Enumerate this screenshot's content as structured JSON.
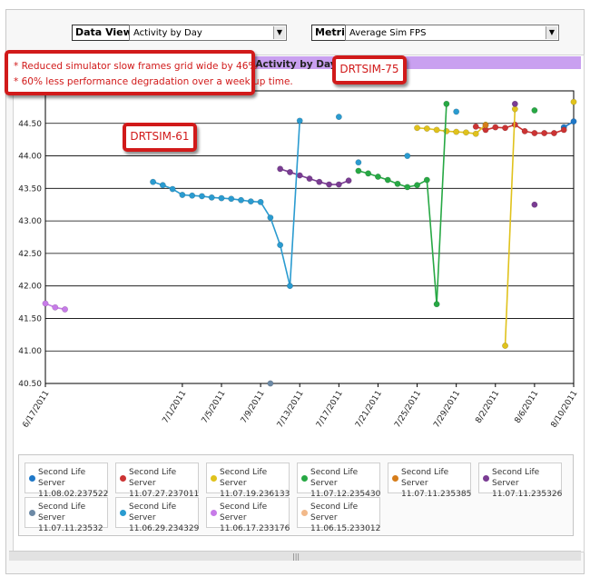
{
  "controls": {
    "data_view_label": "Data View:",
    "data_view_value": "Activity by Day",
    "metric_label": "Metric:",
    "metric_value": "Average Sim FPS"
  },
  "callouts": {
    "note_line1": "* Reduced simulator slow frames grid wide by 46%",
    "note_line2": "* 60% less performance degradation over a week up time.",
    "tag1": "DRTSIM-61",
    "tag2": "DRTSIM-75"
  },
  "chart_data": {
    "type": "line",
    "title": "Activity by Day",
    "xlabel": "",
    "ylabel": "",
    "ylim": [
      40.5,
      45.0
    ],
    "xlim": [
      "2011-06-17",
      "2011-08-10"
    ],
    "yticks": [
      "40.50",
      "41.00",
      "41.50",
      "42.00",
      "42.50",
      "43.00",
      "43.50",
      "44.00",
      "44.50"
    ],
    "xticks": [
      "6/17/2011",
      "7/1/2011",
      "7/5/2011",
      "7/9/2011",
      "7/13/2011",
      "7/17/2011",
      "7/21/2011",
      "7/25/2011",
      "7/29/2011",
      "8/2/2011",
      "8/6/2011",
      "8/10/2011"
    ],
    "legend_position": "bottom",
    "series": [
      {
        "name": "Second Life Server 11.08.02.237522",
        "color": "#1f78c8",
        "points": [
          [
            "2011-08-09",
            44.44
          ],
          [
            "2011-08-10",
            44.53
          ]
        ]
      },
      {
        "name": "Second Life Server 11.07.27.237011",
        "color": "#cc3333",
        "points": [
          [
            "2011-07-31",
            44.45
          ],
          [
            "2011-08-01",
            44.4
          ],
          [
            "2011-08-02",
            44.44
          ],
          [
            "2011-08-03",
            44.43
          ],
          [
            "2011-08-04",
            44.48
          ],
          [
            "2011-08-05",
            44.38
          ],
          [
            "2011-08-06",
            44.35
          ],
          [
            "2011-08-07",
            44.35
          ],
          [
            "2011-08-08",
            44.35
          ],
          [
            "2011-08-09",
            44.4
          ]
        ]
      },
      {
        "name": "Second Life Server 11.07.19.236133",
        "color": "#e0c21c",
        "points": [
          [
            "2011-07-25",
            44.43
          ],
          [
            "2011-07-26",
            44.42
          ],
          [
            "2011-07-27",
            44.4
          ],
          [
            "2011-07-28",
            44.38
          ],
          [
            "2011-07-29",
            44.37
          ],
          [
            "2011-07-30",
            44.36
          ],
          [
            "2011-07-31",
            44.34
          ],
          [
            "2011-08-01",
            44.48
          ],
          [
            "2011-08-03",
            41.08
          ],
          [
            "2011-08-04",
            44.72
          ],
          [
            "2011-08-10",
            44.83
          ]
        ]
      },
      {
        "name": "Second Life Server 11.07.12.235430",
        "color": "#27a844",
        "points": [
          [
            "2011-07-19",
            43.77
          ],
          [
            "2011-07-20",
            43.73
          ],
          [
            "2011-07-21",
            43.68
          ],
          [
            "2011-07-22",
            43.63
          ],
          [
            "2011-07-23",
            43.57
          ],
          [
            "2011-07-24",
            43.52
          ],
          [
            "2011-07-25",
            43.55
          ],
          [
            "2011-07-26",
            43.63
          ],
          [
            "2011-07-27",
            41.72
          ],
          [
            "2011-07-28",
            44.8
          ],
          [
            "2011-08-06",
            44.7
          ]
        ]
      },
      {
        "name": "Second Life Server 11.07.11.235385",
        "color": "#d67d1a",
        "points": [
          [
            "2011-08-01",
            44.47
          ]
        ]
      },
      {
        "name": "Second Life Server 11.07.11.235326",
        "color": "#7a3c93",
        "points": [
          [
            "2011-07-11",
            43.8
          ],
          [
            "2011-07-12",
            43.75
          ],
          [
            "2011-07-13",
            43.7
          ],
          [
            "2011-07-14",
            43.65
          ],
          [
            "2011-07-15",
            43.6
          ],
          [
            "2011-07-16",
            43.56
          ],
          [
            "2011-07-17",
            43.56
          ],
          [
            "2011-07-18",
            43.62
          ],
          [
            "2011-08-04",
            44.8
          ],
          [
            "2011-08-06",
            43.25
          ]
        ]
      },
      {
        "name": "Second Life Server 11.07.11.23532",
        "color": "#6d8aa6",
        "points": [
          [
            "2011-07-10",
            40.5
          ]
        ]
      },
      {
        "name": "Second Life Server 11.06.29.234329",
        "color": "#2a9bd0",
        "points": [
          [
            "2011-06-28",
            43.6
          ],
          [
            "2011-06-29",
            43.55
          ],
          [
            "2011-06-30",
            43.49
          ],
          [
            "2011-07-01",
            43.4
          ],
          [
            "2011-07-02",
            43.39
          ],
          [
            "2011-07-03",
            43.38
          ],
          [
            "2011-07-04",
            43.36
          ],
          [
            "2011-07-05",
            43.35
          ],
          [
            "2011-07-06",
            43.34
          ],
          [
            "2011-07-07",
            43.32
          ],
          [
            "2011-07-08",
            43.3
          ],
          [
            "2011-07-09",
            43.29
          ],
          [
            "2011-07-10",
            43.05
          ],
          [
            "2011-07-11",
            42.63
          ],
          [
            "2011-07-12",
            42.0
          ],
          [
            "2011-07-13",
            44.54
          ],
          [
            "2011-07-17",
            44.6
          ],
          [
            "2011-07-19",
            43.9
          ],
          [
            "2011-07-24",
            44.0
          ],
          [
            "2011-07-29",
            44.68
          ]
        ]
      },
      {
        "name": "Second Life Server 11.06.17.233176",
        "color": "#c77be8",
        "points": [
          [
            "2011-06-17",
            41.73
          ],
          [
            "2011-06-18",
            41.67
          ],
          [
            "2011-06-19",
            41.64
          ]
        ]
      },
      {
        "name": "Second Life Server 11.06.15.233012",
        "color": "#f2b98a",
        "points": []
      }
    ]
  }
}
